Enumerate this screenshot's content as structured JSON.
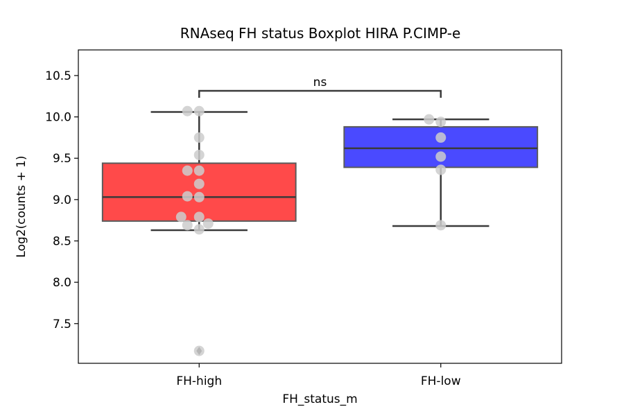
{
  "chart_data": {
    "type": "box",
    "title": "RNAseq FH status Boxplot HIRA P.CIMP-e",
    "xlabel": "FH_status_m",
    "ylabel": "Log2(counts + 1)",
    "ylim": [
      7.02,
      10.81
    ],
    "yticks": [
      "7.5",
      "8.0",
      "8.5",
      "9.0",
      "9.5",
      "10.0",
      "10.5"
    ],
    "categories": [
      "FH-high",
      "FH-low"
    ],
    "colors": {
      "FH-high": "#ff4a4a",
      "FH-low": "#4a4aff",
      "points": "#cccccc",
      "lines": "#3a3a3a"
    },
    "boxes": [
      {
        "category": "FH-high",
        "whisker_low": 8.63,
        "q1": 8.74,
        "median": 9.03,
        "q3": 9.44,
        "whisker_high": 10.06,
        "outliers": [
          7.17
        ]
      },
      {
        "category": "FH-low",
        "whisker_low": 8.68,
        "q1": 9.39,
        "median": 9.62,
        "q3": 9.88,
        "whisker_high": 9.97,
        "outliers": []
      }
    ],
    "points": [
      {
        "category": "FH-high",
        "values": [
          10.07,
          10.07,
          9.75,
          9.54,
          9.35,
          9.35,
          9.19,
          9.04,
          9.03,
          8.79,
          8.79,
          8.71,
          8.69,
          8.64,
          7.17
        ]
      },
      {
        "category": "FH-low",
        "values": [
          9.97,
          9.94,
          9.75,
          9.52,
          9.36,
          8.69
        ]
      }
    ],
    "annotation": {
      "text": "ns",
      "between": [
        "FH-high",
        "FH-low"
      ]
    }
  }
}
